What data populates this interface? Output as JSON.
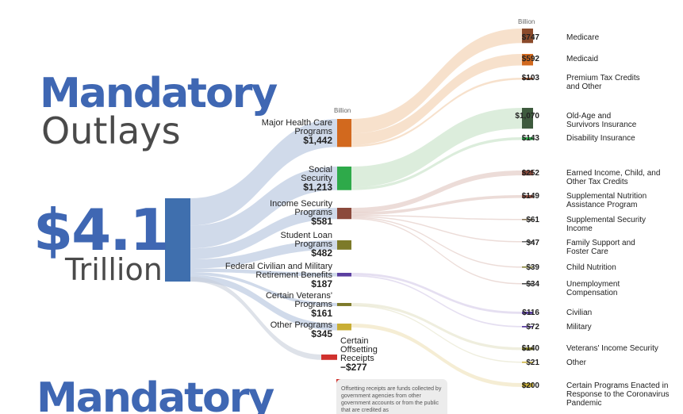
{
  "title": {
    "line1": "Mandatory",
    "line2": "Outlays",
    "total": "$4.1",
    "total_unit": "Trillion",
    "bottom_title": "Mandatory"
  },
  "units": {
    "mid": "Billion",
    "right": "Billion"
  },
  "colors": {
    "root": "#3f6fae",
    "health": "#d2691e",
    "social": "#2eaa4a",
    "income": "#8b4a3c",
    "student": "#7d7a2a",
    "federal": "#5b3fa0",
    "veterans": "#7d7a2a",
    "other": "#c9ae35",
    "offset": "#d0312d"
  },
  "note": "Offsetting receipts are funds collected by government agencies from other government accounts or from the public that are credited as",
  "chart_data": {
    "type": "sankey",
    "total": "$4.1 Trillion",
    "categories": [
      {
        "name": "Major Health Care Programs",
        "value": "$1,442",
        "amount": 1442,
        "items": [
          {
            "name": "Medicare",
            "value": "$747",
            "amount": 747
          },
          {
            "name": "Medicaid",
            "value": "$592",
            "amount": 592
          },
          {
            "name": "Premium Tax Credits and Other",
            "value": "$103",
            "amount": 103
          }
        ]
      },
      {
        "name": "Social Security",
        "value": "$1,213",
        "amount": 1213,
        "items": [
          {
            "name": "Old-Age and Survivors Insurance",
            "value": "$1,070",
            "amount": 1070
          },
          {
            "name": "Disability Insurance",
            "value": "$143",
            "amount": 143
          }
        ]
      },
      {
        "name": "Income Security Programs",
        "value": "$581",
        "amount": 581,
        "items": [
          {
            "name": "Earned Income, Child, and Other Tax Credits",
            "value": "$252",
            "amount": 252
          },
          {
            "name": "Supplemental Nutrition Assistance Program",
            "value": "$149",
            "amount": 149
          },
          {
            "name": "Supplemental Security Income",
            "value": "$61",
            "amount": 61
          },
          {
            "name": "Family Support and Foster Care",
            "value": "$47",
            "amount": 47
          },
          {
            "name": "Child Nutrition",
            "value": "$39",
            "amount": 39
          },
          {
            "name": "Unemployment Compensation",
            "value": "$34",
            "amount": 34
          }
        ]
      },
      {
        "name": "Student Loan Programs",
        "value": "$482",
        "amount": 482,
        "items": []
      },
      {
        "name": "Federal Civilian and Military Retirement Benefits",
        "value": "$187",
        "amount": 187,
        "items": [
          {
            "name": "Civilian",
            "value": "$116",
            "amount": 116
          },
          {
            "name": "Military",
            "value": "$72",
            "amount": 72
          }
        ]
      },
      {
        "name": "Certain Veterans' Programs",
        "value": "$161",
        "amount": 161,
        "items": [
          {
            "name": "Veterans' Income Security",
            "value": "$140",
            "amount": 140
          },
          {
            "name": "Other",
            "value": "$21",
            "amount": 21
          }
        ]
      },
      {
        "name": "Other Programs",
        "value": "$345",
        "amount": 345,
        "items": [
          {
            "name": "Certain Programs Enacted in Response to the Coronavirus Pandemic",
            "value": "$200",
            "amount": 200
          }
        ]
      },
      {
        "name": "Certain Offsetting Receipts",
        "value": "−$277",
        "amount": -277,
        "items": []
      }
    ]
  }
}
